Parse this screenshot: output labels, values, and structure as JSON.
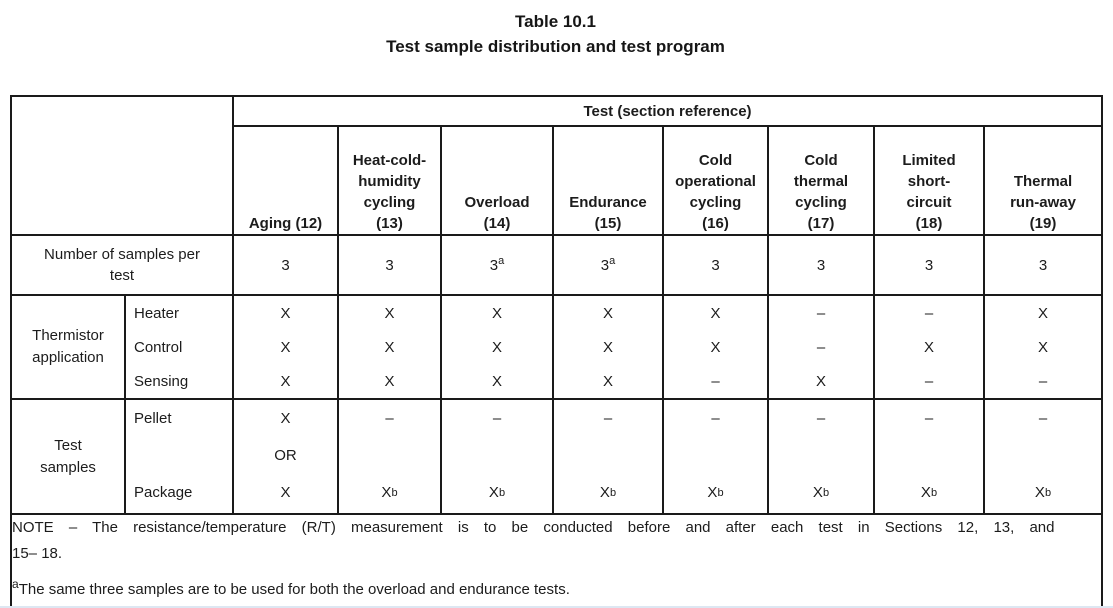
{
  "page": {
    "background": "#ffffff",
    "text_color": "#1c1c1c",
    "border_color": "#1a1a1a"
  },
  "title": {
    "line1": "Table 10.1",
    "line2": "Test sample distribution and test program"
  },
  "table": {
    "span_header": "Test (section reference)",
    "columns": [
      "Aging (12)",
      "Heat-cold-\nhumidity\ncycling\n(13)",
      "Overload\n(14)",
      "Endurance\n(15)",
      "Cold\noperational\ncycling\n(16)",
      "Cold\nthermal\ncycling\n(17)",
      "Limited\nshort-\ncircuit\n(18)",
      "Thermal\nrun-away\n(19)"
    ],
    "samples_row": {
      "label": "Number of samples per\ntest",
      "values": [
        "3",
        "3",
        "3^a",
        "3^a",
        "3",
        "3",
        "3",
        "3"
      ]
    },
    "thermistor_group": {
      "label": "Thermistor\napplication",
      "row_labels": [
        "Heater",
        "Control",
        "Sensing"
      ],
      "columns": [
        [
          "X",
          "X",
          "X"
        ],
        [
          "X",
          "X",
          "X"
        ],
        [
          "X",
          "X",
          "X"
        ],
        [
          "X",
          "X",
          "X"
        ],
        [
          "X",
          "X",
          "–"
        ],
        [
          "–",
          "–",
          "X"
        ],
        [
          "–",
          "X",
          "–"
        ],
        [
          "X",
          "X",
          "–"
        ]
      ]
    },
    "samples_group": {
      "label": "Test\nsamples",
      "row_labels": [
        "Pellet",
        "",
        "Package"
      ],
      "columns": [
        [
          "X",
          "OR",
          "X"
        ],
        [
          "–",
          "",
          "X^b"
        ],
        [
          "–",
          "",
          "X^b"
        ],
        [
          "–",
          "",
          "X^b"
        ],
        [
          "–",
          "",
          "X^b"
        ],
        [
          "–",
          "",
          "X^b"
        ],
        [
          "–",
          "",
          "X^b"
        ],
        [
          "–",
          "",
          "X^b"
        ]
      ]
    }
  },
  "notes": {
    "note_line1": "NOTE – The resistance/temperature (R/T) measurement is to be conducted before and after each test in Sections 12, 13, and",
    "note_line2": "15– 18.",
    "footnote_a_marker": "a",
    "footnote_a_text": "The same three samples are to be used for both the overload and endurance tests."
  }
}
